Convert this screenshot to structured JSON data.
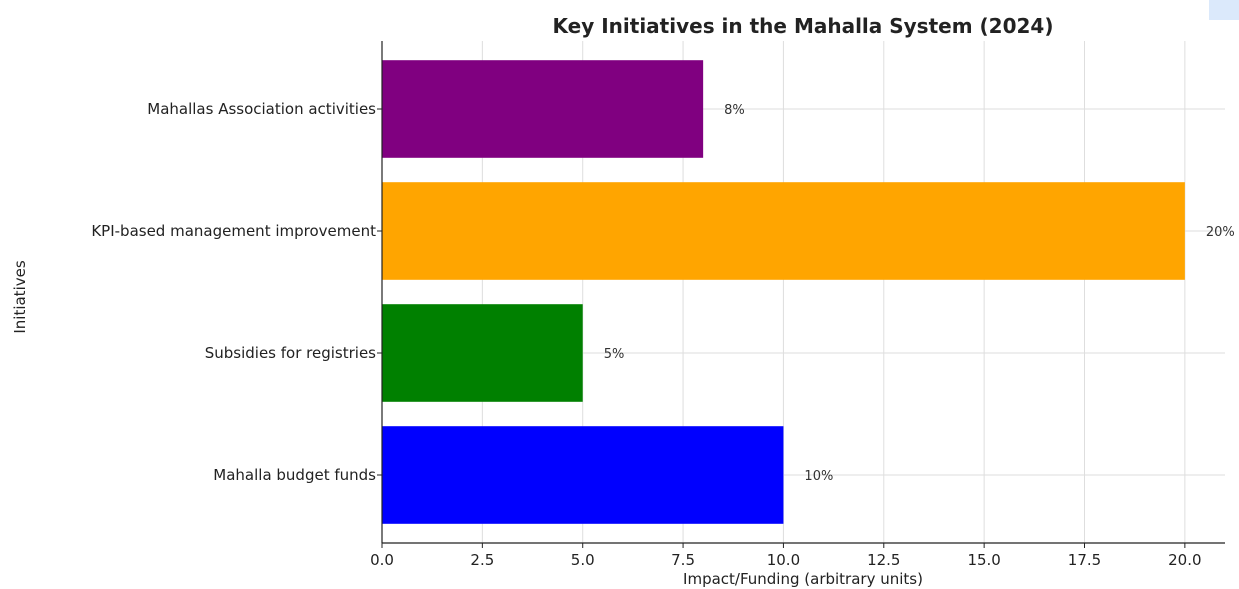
{
  "chart_data": {
    "type": "bar",
    "orientation": "horizontal",
    "title": "Key Initiatives in the Mahalla System (2024)",
    "xlabel": "Impact/Funding (arbitrary units)",
    "ylabel": "Initiatives",
    "xlim": [
      0,
      21
    ],
    "xticks": [
      "0.0",
      "2.5",
      "5.0",
      "7.5",
      "10.0",
      "12.5",
      "15.0",
      "17.5",
      "20.0"
    ],
    "xtick_values": [
      0,
      2.5,
      5,
      7.5,
      10,
      12.5,
      15,
      17.5,
      20
    ],
    "grid": true,
    "categories": [
      "Mahalla budget funds",
      "Subsidies for registries",
      "KPI-based management improvement",
      "Mahallas Association activities"
    ],
    "values": [
      10,
      5,
      20,
      8
    ],
    "data_labels": [
      "10%",
      "5%",
      "20%",
      "8%"
    ],
    "colors": [
      "#0000ff",
      "#008000",
      "#ffa500",
      "#800080"
    ]
  }
}
